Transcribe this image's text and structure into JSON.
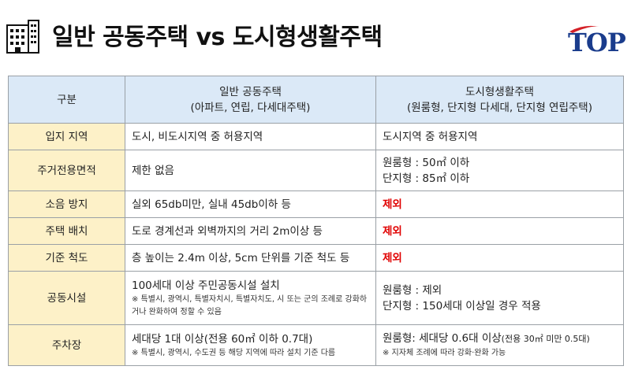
{
  "title": "일반 공동주택 vs 도시형생활주택",
  "logo": {
    "text": "TOP",
    "brand_color": "#1a3c8c",
    "accent_color": "#d42027"
  },
  "colors": {
    "header_bg": "#dbe9f7",
    "label_bg": "#fdf1c8",
    "exclusion_red": "#e00000"
  },
  "table": {
    "header": {
      "col0": "구분",
      "col1_title": "일반 공동주택",
      "col1_sub": "(아파트, 연립, 다세대주택)",
      "col2_title": "도시형생활주택",
      "col2_sub": "(원룸형, 단지형 다세대, 단지형 연립주택)"
    },
    "rows": [
      {
        "label": "입지 지역",
        "general": "도시, 비도시지역 중 허용지역",
        "urban": "도시지역 중 허용지역"
      },
      {
        "label": "주거전용면적",
        "general": "제한 없음",
        "urban_line1": "원룸형 : 50㎡ 이하",
        "urban_line2": "단지형 : 85㎡ 이하"
      },
      {
        "label": "소음 방지",
        "general": "실외 65db미만, 실내 45db이하 등",
        "urban": "제외"
      },
      {
        "label": "주택 배치",
        "general": "도로 경계선과 외벽까지의 거리 2m이상 등",
        "urban": "제외"
      },
      {
        "label": "기준 척도",
        "general": "층 높이는 2.4m 이상, 5cm 단위를 기준 척도 등",
        "urban": "제외"
      },
      {
        "label": "공동시설",
        "general": "100세대 이상 주민공동시설 설치",
        "general_note": "※ 특별시, 광역시, 특별자치시, 특별자치도, 시 또는 군의 조례로 강화하거나 완화하여 정할 수 있음",
        "urban_line1": "원룸형 : 제외",
        "urban_line2": "단지형 : 150세대 이상일 경우 적용"
      },
      {
        "label": "주차장",
        "general": "세대당 1대 이상(전용 60㎡ 이하 0.7대)",
        "general_note": "※ 특별시, 광역시, 수도권 등 해당 지역에 따라 설치 기준 다름",
        "urban_main": "원룸형: 세대당 0.6대 이상",
        "urban_small": "(전용 30㎡ 미만 0.5대)",
        "urban_note": "※ 지자체 조례에 따라 강화·완화 가능"
      }
    ]
  }
}
